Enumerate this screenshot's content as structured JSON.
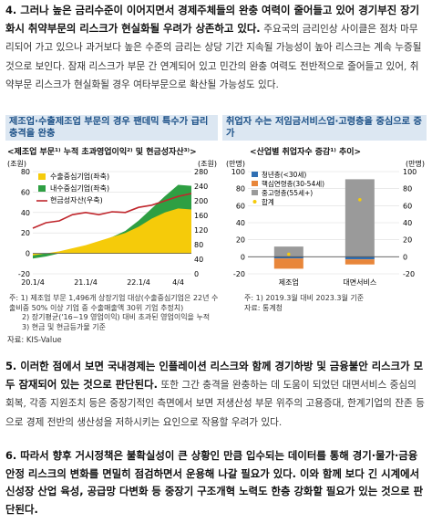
{
  "para4": {
    "bold": "4. 그러나 높은 금리수준이 이어지면서 경제주체들의 완충 여력이 줄어들고 있어 경기부진 장기화시 취약부문의 리스크가 현실화될 우려가 상존하고 있다.",
    "rest": "주요국의 금리인상 사이클은 점차 마무리되어 가고 있으나 과거보다 높은 수준의 금리는 상당 기간 지속될 가능성이 높아 리스크는 계속 누증될 것으로 보인다. 잠재 리스크가 부문 간 연계되어 있고 민간의 완충 여력도 전반적으로 줄어들고 있어, 취약부문 리스크가 현실화될 경우 여타부문으로 확산될 가능성도 있다."
  },
  "left_panel": {
    "header": "제조업·수출제조업 부문의 경우 팬데믹 특수가 급리충격을 완충",
    "subtitle": "<제조업 부문¹⁾ 누적 초과영업이익²⁾ 및 현금성자산³⁾>",
    "notes": [
      "주: 1) 제조업 부문 1,496개 상장기업 대상(수출중심기업은 22년 수출비중 50% 이상 기업 중 수출매출액 30위 기업 추정치)",
      "2) 장기평균('16~19 영업이익) 대비 초과된 영업이익을 누적",
      "3) 현금 및 현금등가물 기준"
    ],
    "source": "자료: KIS-Value"
  },
  "right_panel": {
    "header": "취업자 수는 저임금서비스업·고령층을 중심으로 증가",
    "subtitle": "<산업별 취업자수 증감¹⁾ 추이>",
    "notes": [
      "주: 1) 2019.3월 대비 2023.3월 기준",
      "자료: 통계청"
    ]
  },
  "chart_data": [
    {
      "type": "area",
      "y_left_label": "(조원)",
      "y_right_label": "(조원)",
      "ylim_left": [
        -20,
        80
      ],
      "ylim_right": [
        0,
        280
      ],
      "y_left_ticks": [
        "80",
        "60",
        "40",
        "20",
        "0",
        "-20"
      ],
      "y_right_ticks": [
        "280",
        "240",
        "200",
        "160",
        "120",
        "80",
        "40",
        "0"
      ],
      "x_ticks": [
        "20.1/4",
        "21.1/4",
        "22.1/4",
        "4/4"
      ],
      "legend": [
        "수출중심기업(좌축)",
        "내수중심기업(좌축)",
        "현금성자산(우축)"
      ],
      "colors": {
        "export": "#f5cb0a",
        "domestic": "#2e9f43",
        "cash": "#c0272d"
      },
      "x": [
        "20.1/4",
        "20.2/4",
        "20.3/4",
        "20.4/4",
        "21.1/4",
        "21.2/4",
        "21.3/4",
        "21.4/4",
        "22.1/4",
        "22.2/4",
        "22.3/4",
        "22.4/4",
        "23.1/4"
      ],
      "series": [
        {
          "name": "수출중심기업(좌축)",
          "values": [
            -2,
            0,
            2,
            5,
            8,
            12,
            16,
            20,
            26,
            34,
            40,
            44,
            43
          ]
        },
        {
          "name": "내수중심기업(좌축)",
          "values": [
            -5,
            -3,
            0,
            3,
            7,
            11,
            16,
            22,
            32,
            44,
            56,
            67,
            66
          ]
        },
        {
          "name": "현금성자산(우축)",
          "values": [
            125,
            140,
            145,
            162,
            168,
            162,
            170,
            168,
            182,
            188,
            200,
            212,
            220
          ]
        }
      ]
    },
    {
      "type": "bar",
      "y_left_label": "(만명)",
      "y_right_label": "(만명)",
      "ylim": [
        -20,
        100
      ],
      "y_left_ticks": [
        "100",
        "80",
        "60",
        "40",
        "20",
        "0",
        "-20"
      ],
      "y_right_ticks": [
        "100",
        "80",
        "60",
        "40",
        "20",
        "0",
        "-20"
      ],
      "categories": [
        "제조업",
        "대면서비스"
      ],
      "legend": [
        "청년층(<30세)",
        "핵심연령층(30-54세)",
        "중고령층(55세+)",
        "합계"
      ],
      "colors": {
        "youth": "#2f6fb3",
        "core": "#e8863a",
        "senior": "#9a9a9a",
        "total": "#f5cb0a"
      },
      "series": [
        {
          "name": "청년층(<30세)",
          "values": [
            -2,
            -3
          ]
        },
        {
          "name": "핵심연령층(30-54세)",
          "values": [
            -12,
            -6
          ]
        },
        {
          "name": "중고령층(55세+)",
          "values": [
            12,
            91
          ]
        },
        {
          "name": "합계",
          "values": [
            3,
            67
          ]
        }
      ]
    }
  ],
  "para5": {
    "bold": "5. 이러한 점에서 보면 국내경제는 인플레이션 리스크와 함께 경기하방 및 금융불안 리스크가 모두 잠재되어 있는 것으로 판단된다.",
    "rest": "또한 그간 충격을 완충하는 데 도움이 되었던 대면서비스 중심의 회복, 각종 지원조치 등은 중장기적인 측면에서 보면 저생산성 부문 위주의 고용증대, 한계기업의 잔존 등으로 경제 전반의 생산성을 저하시키는 요인으로 작용할 우려가 있다."
  },
  "para6": {
    "bold": "6. 따라서 향후 거시정책은 불확실성이 큰 상황인 만큼 입수되는 데이터를 통해 경기·물가·금융안정 리스크의 변화를 면밀히 점검하면서 운용해 나갈 필요가 있다. 이와 함께 보다 긴 시계에서 신성장 산업 육성, 공급망 다변화 등 중장기 구조개혁 노력도 한층 강화할 필요가 있는 것으로 판단된다.",
    "rest": ""
  }
}
